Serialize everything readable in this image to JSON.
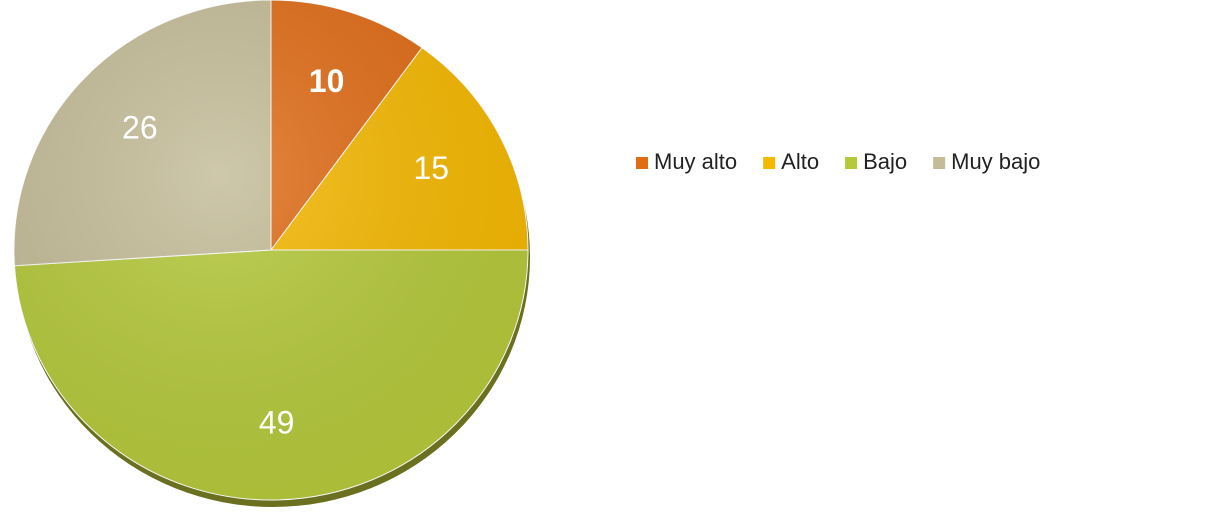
{
  "chart_data": {
    "type": "pie",
    "categories": [
      "Muy alto",
      "Alto",
      "Bajo",
      "Muy bajo"
    ],
    "values": [
      10,
      15,
      49,
      26
    ],
    "colors": [
      "#e06c16",
      "#f5b800",
      "#b5c93a",
      "#c4bc98"
    ],
    "legend": "right"
  }
}
